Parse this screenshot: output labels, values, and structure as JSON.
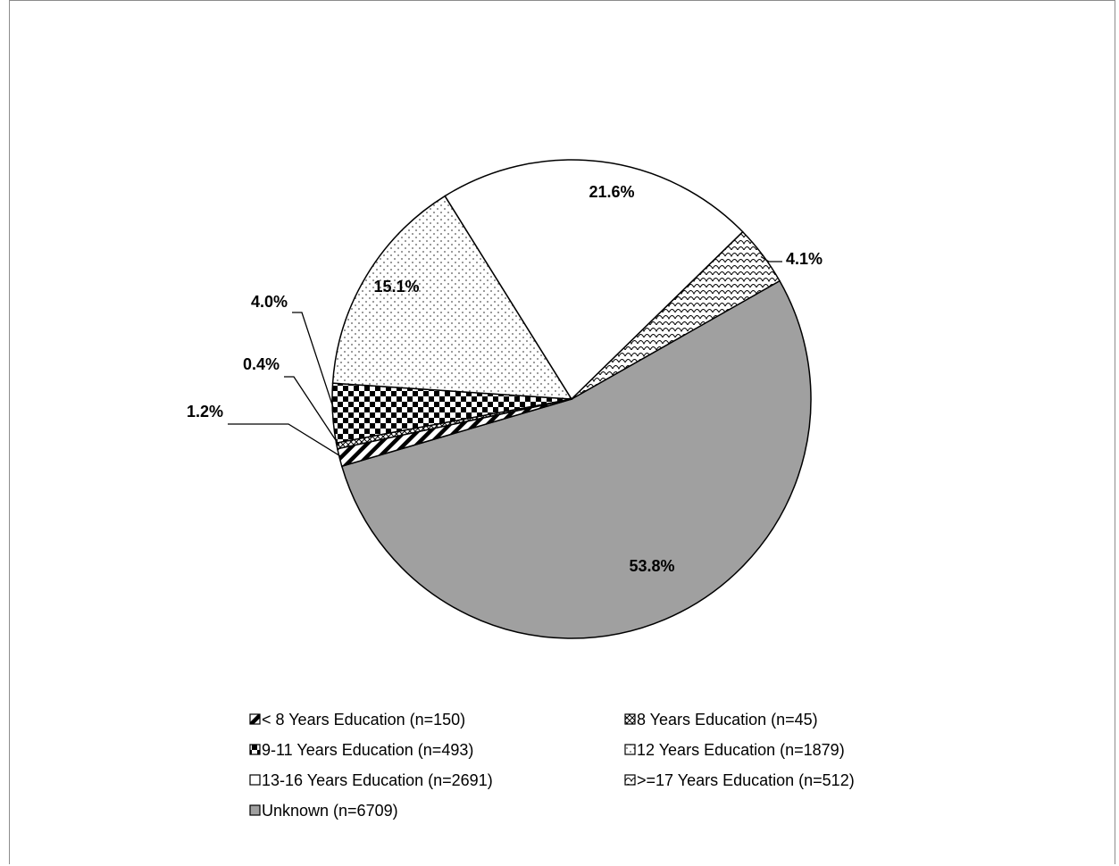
{
  "chart_data": {
    "type": "pie",
    "slices": [
      {
        "label": "Unknown (n=6709)",
        "value": 53.8,
        "percent_label": "53.8%",
        "color": "#a0a0a0",
        "pattern": "solid"
      },
      {
        "label": "< 8 Years Education (n=150)",
        "value": 1.2,
        "percent_label": "1.2%",
        "color": "#000000",
        "pattern": "diagonal"
      },
      {
        "label": "8 Years Education (n=45)",
        "value": 0.4,
        "percent_label": "0.4%",
        "color": "#000000",
        "pattern": "cross"
      },
      {
        "label": "9-11 Years Education (n=493)",
        "value": 4.0,
        "percent_label": "4.0%",
        "color": "#000000",
        "pattern": "checker"
      },
      {
        "label": "12 Years Education (n=1879)",
        "value": 15.1,
        "percent_label": "15.1%",
        "color": "#000000",
        "pattern": "dots"
      },
      {
        "label": "13-16 Years Education (n=2691)",
        "value": 21.6,
        "percent_label": "21.6%",
        "color": "#ffffff",
        "pattern": "white"
      },
      {
        "label": ">=17 Years Education (n=512)",
        "value": 4.1,
        "percent_label": "4.1%",
        "color": "#000000",
        "pattern": "scales"
      }
    ],
    "legend_order": [
      "< 8 Years Education (n=150)",
      "8 Years Education (n=45)",
      "9-11 Years Education (n=493)",
      "12 Years Education (n=1879)",
      "13-16 Years Education (n=2691)",
      ">=17 Years Education (n=512)",
      "Unknown (n=6709)"
    ],
    "legend_position": "bottom"
  }
}
